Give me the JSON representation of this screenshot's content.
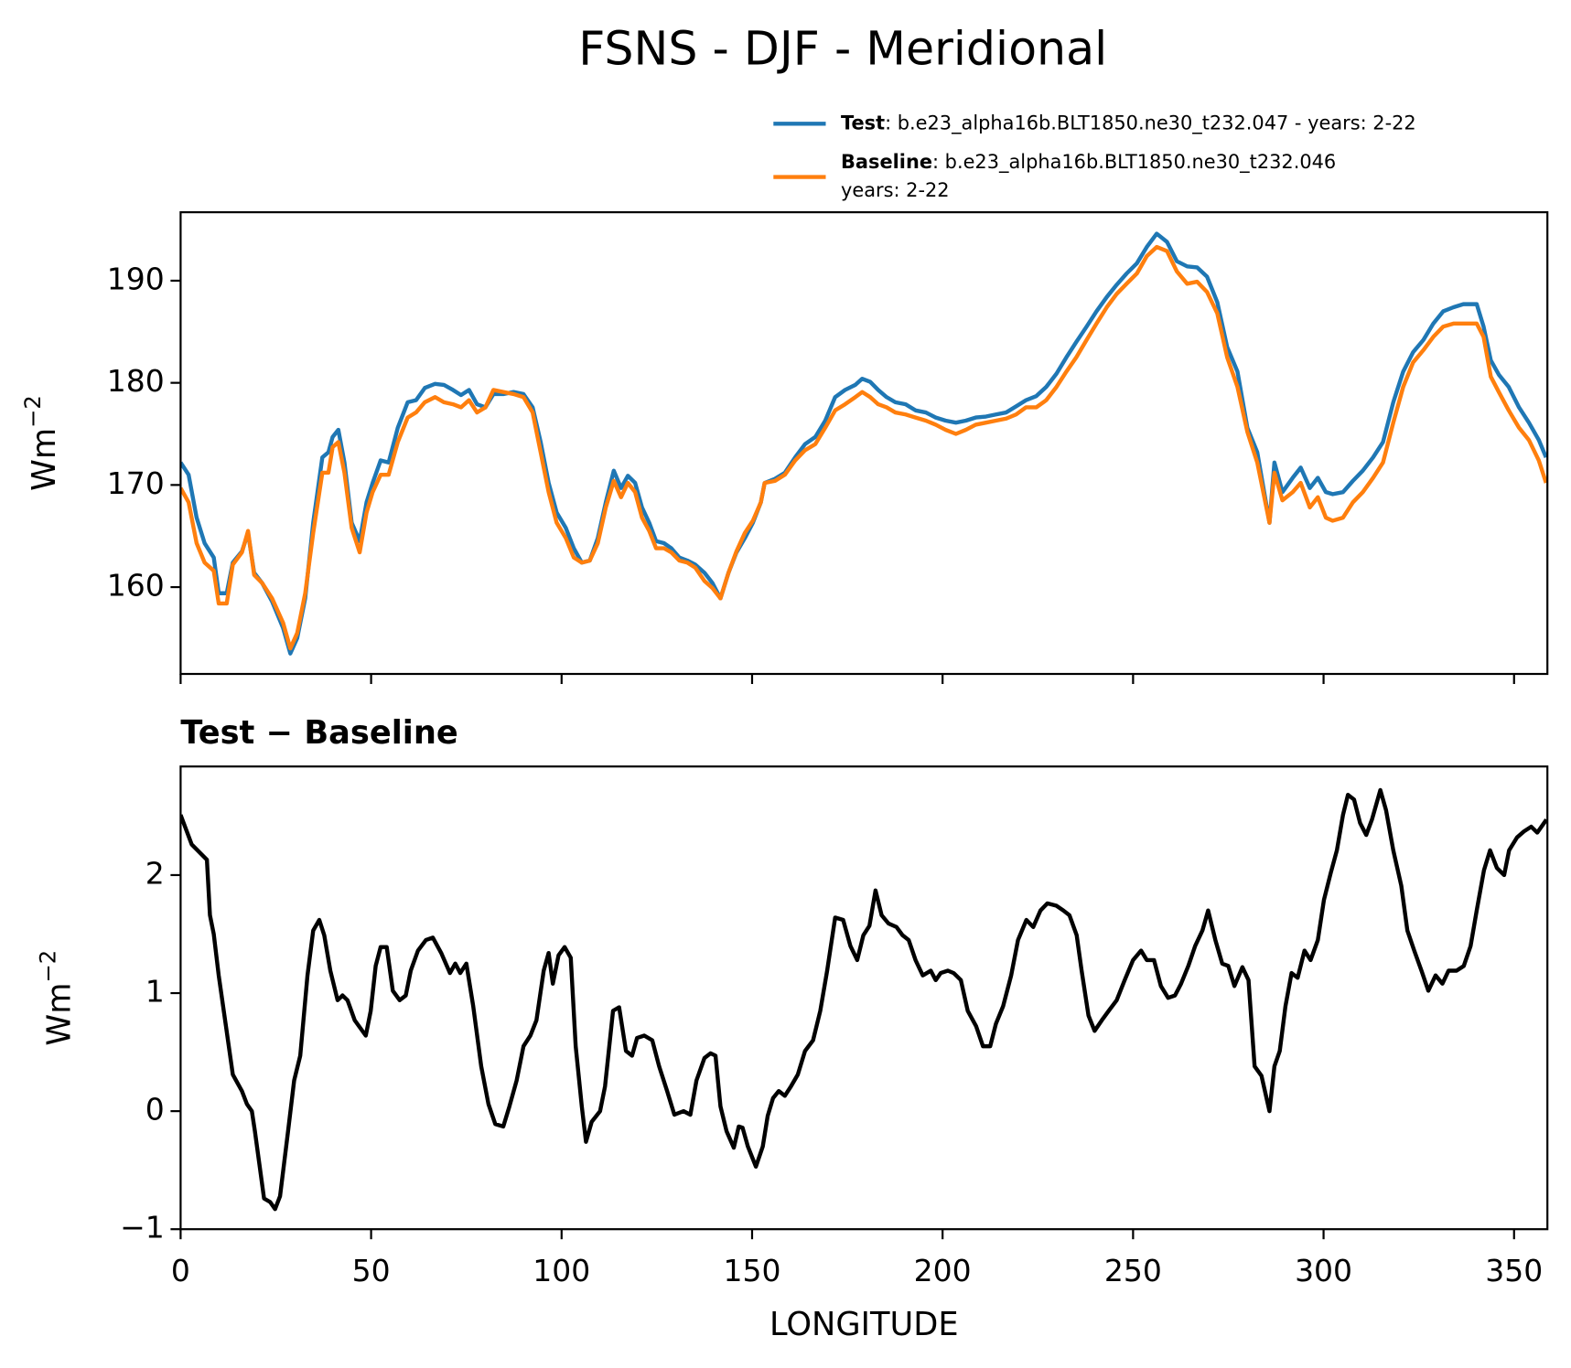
{
  "title": "FSNS - DJF - Meridional",
  "chart_data": [
    {
      "type": "line",
      "ylabel": "Wm",
      "ylabel_exponent": "−2",
      "xlim": [
        0,
        358.75
      ],
      "ylim": [
        151.5,
        196.7
      ],
      "xticks": [
        0,
        50,
        100,
        150,
        200,
        250,
        300,
        350
      ],
      "yticks": [
        160,
        170,
        180,
        190
      ],
      "x": [
        0,
        2.1,
        4.2,
        6.3,
        8.7,
        10.0,
        12.1,
        13.7,
        16.1,
        17.7,
        19.3,
        21.4,
        24.0,
        26.9,
        28.8,
        30.6,
        32.7,
        34.8,
        37.2,
        38.8,
        39.9,
        41.4,
        43.0,
        44.9,
        47.0,
        48.8,
        50.4,
        52.5,
        54.6,
        57.0,
        59.6,
        61.8,
        64.1,
        66.8,
        69.1,
        71.5,
        73.6,
        75.7,
        77.8,
        80.0,
        82.1,
        84.7,
        87.4,
        90.0,
        92.4,
        94.5,
        96.6,
        98.7,
        101.1,
        103.2,
        105.3,
        107.4,
        109.5,
        111.6,
        113.7,
        115.6,
        117.4,
        119.3,
        121.1,
        123.0,
        124.8,
        126.9,
        128.8,
        130.9,
        133.0,
        135.1,
        137.5,
        139.6,
        141.7,
        143.8,
        145.9,
        148.1,
        150.2,
        152.3,
        153.3,
        156.0,
        158.6,
        161.3,
        163.9,
        166.6,
        169.2,
        171.8,
        174.4,
        177.1,
        178.9,
        181.0,
        183.1,
        185.3,
        187.6,
        190.3,
        192.9,
        195.6,
        198.2,
        200.8,
        203.5,
        206.1,
        208.7,
        211.4,
        214.0,
        216.7,
        219.3,
        221.9,
        224.6,
        227.2,
        229.9,
        232.5,
        235.1,
        237.8,
        240.4,
        243.1,
        245.7,
        248.3,
        251.0,
        253.6,
        256.2,
        258.9,
        261.5,
        264.2,
        266.8,
        269.4,
        272.1,
        274.7,
        277.4,
        280.0,
        282.6,
        285.8,
        287.1,
        289.2,
        291.9,
        294.0,
        296.4,
        298.5,
        300.6,
        302.4,
        305.1,
        307.7,
        310.3,
        313.0,
        315.6,
        318.3,
        320.9,
        323.5,
        326.2,
        328.8,
        331.4,
        334.1,
        336.7,
        340.2,
        342.0,
        343.9,
        346.0,
        348.6,
        351.3,
        353.9,
        356.5,
        358.4
      ],
      "series": [
        {
          "name": "Test",
          "label_lines": [
            ": b.e23_alpha16b.BLT1850.ne30_t232.047 - years: 2-22"
          ],
          "color": "#1f77b4",
          "values": [
            172.2,
            171.0,
            166.8,
            164.3,
            162.9,
            159.4,
            159.4,
            162.4,
            163.5,
            165.3,
            161.4,
            160.4,
            158.6,
            156.0,
            153.5,
            155.0,
            158.9,
            166.3,
            172.7,
            173.2,
            174.7,
            175.4,
            172.2,
            166.3,
            164.5,
            168.3,
            170.2,
            172.4,
            172.2,
            175.6,
            178.1,
            178.3,
            179.5,
            179.9,
            179.8,
            179.3,
            178.8,
            179.3,
            177.9,
            177.6,
            178.9,
            178.9,
            179.1,
            178.9,
            177.6,
            174.2,
            170.2,
            167.3,
            165.8,
            163.8,
            162.4,
            162.6,
            164.8,
            168.3,
            171.4,
            169.7,
            170.9,
            170.2,
            167.8,
            166.3,
            164.5,
            164.3,
            163.8,
            162.9,
            162.6,
            162.2,
            161.4,
            160.4,
            158.9,
            161.4,
            163.4,
            164.8,
            166.3,
            168.3,
            170.2,
            170.6,
            171.2,
            172.7,
            174.0,
            174.7,
            176.3,
            178.6,
            179.3,
            179.8,
            180.4,
            180.1,
            179.3,
            178.6,
            178.1,
            177.9,
            177.3,
            177.1,
            176.6,
            176.3,
            176.1,
            176.3,
            176.6,
            176.7,
            176.9,
            177.1,
            177.7,
            178.3,
            178.7,
            179.6,
            180.9,
            182.5,
            184.0,
            185.5,
            187.0,
            188.4,
            189.6,
            190.7,
            191.7,
            193.3,
            194.6,
            193.8,
            191.9,
            191.4,
            191.3,
            190.4,
            187.9,
            183.5,
            181.1,
            175.6,
            173.2,
            166.3,
            172.2,
            169.3,
            170.7,
            171.7,
            169.7,
            170.7,
            169.3,
            169.1,
            169.3,
            170.4,
            171.4,
            172.7,
            174.2,
            178.1,
            181.1,
            183.0,
            184.2,
            185.8,
            187.0,
            187.4,
            187.7,
            187.7,
            185.5,
            182.2,
            180.8,
            179.6,
            177.6,
            176.1,
            174.4,
            172.7
          ]
        },
        {
          "name": "Baseline",
          "label_lines": [
            ": b.e23_alpha16b.BLT1850.ne30_t232.046",
            "years: 2-22"
          ],
          "color": "#ff7f0e",
          "values": [
            169.7,
            168.3,
            164.3,
            162.4,
            161.6,
            158.4,
            158.4,
            162.2,
            163.4,
            165.5,
            161.2,
            160.4,
            158.9,
            156.5,
            154.0,
            155.5,
            159.4,
            165.3,
            171.2,
            171.2,
            173.7,
            174.2,
            171.2,
            165.8,
            163.4,
            167.3,
            169.3,
            171.0,
            171.0,
            174.2,
            176.6,
            177.1,
            178.1,
            178.6,
            178.1,
            177.9,
            177.6,
            178.3,
            177.1,
            177.6,
            179.3,
            179.1,
            178.9,
            178.6,
            177.1,
            173.2,
            169.3,
            166.3,
            164.8,
            162.9,
            162.4,
            162.6,
            164.3,
            167.8,
            170.4,
            168.8,
            170.2,
            169.3,
            166.8,
            165.5,
            163.8,
            163.8,
            163.4,
            162.6,
            162.4,
            161.9,
            160.6,
            159.9,
            158.9,
            161.4,
            163.5,
            165.3,
            166.5,
            168.3,
            170.2,
            170.4,
            171.0,
            172.4,
            173.4,
            174.0,
            175.6,
            177.3,
            177.9,
            178.6,
            179.1,
            178.6,
            177.9,
            177.6,
            177.1,
            176.9,
            176.6,
            176.3,
            175.9,
            175.4,
            175.0,
            175.4,
            175.9,
            176.1,
            176.3,
            176.5,
            176.9,
            177.6,
            177.6,
            178.3,
            179.6,
            181.1,
            182.5,
            184.2,
            185.8,
            187.4,
            188.7,
            189.7,
            190.7,
            192.4,
            193.3,
            192.9,
            190.9,
            189.7,
            189.9,
            188.9,
            186.8,
            182.5,
            179.6,
            175.2,
            172.2,
            166.3,
            171.2,
            168.5,
            169.3,
            170.2,
            167.8,
            168.8,
            166.8,
            166.5,
            166.8,
            168.3,
            169.3,
            170.7,
            172.2,
            176.1,
            179.6,
            182.0,
            183.2,
            184.5,
            185.5,
            185.8,
            185.8,
            185.8,
            184.5,
            180.6,
            179.1,
            177.3,
            175.6,
            174.4,
            172.4,
            170.2
          ]
        }
      ]
    },
    {
      "type": "line",
      "title": "Test − Baseline",
      "xlabel": "LONGITUDE",
      "ylabel": "Wm",
      "ylabel_exponent": "−2",
      "xlim": [
        0,
        358.75
      ],
      "ylim": [
        -1,
        2.92
      ],
      "xticks": [
        0,
        50,
        100,
        150,
        200,
        250,
        300,
        350
      ],
      "yticks": [
        {
          "value": -1,
          "label": "−1"
        },
        0,
        1,
        2
      ],
      "x": [
        0,
        2.9,
        6.9,
        7.7,
        8.7,
        10.0,
        11.9,
        13.7,
        16.1,
        17.4,
        18.7,
        19.5,
        21.9,
        23.5,
        24.8,
        26.1,
        28.2,
        29.8,
        31.4,
        33.3,
        34.8,
        36.4,
        37.7,
        39.3,
        41.2,
        42.5,
        43.8,
        45.7,
        48.6,
        49.9,
        51.2,
        52.5,
        54.1,
        55.7,
        57.5,
        59.1,
        60.4,
        62.3,
        64.4,
        66.2,
        68.4,
        70.7,
        72.1,
        73.4,
        75.0,
        76.8,
        78.9,
        80.8,
        82.6,
        84.7,
        86.3,
        88.2,
        90.0,
        91.8,
        93.4,
        95.3,
        96.6,
        97.7,
        99.2,
        100.8,
        102.4,
        103.7,
        105.3,
        106.4,
        107.9,
        110.1,
        111.4,
        113.5,
        115.1,
        116.9,
        118.5,
        119.8,
        121.7,
        123.8,
        125.6,
        127.7,
        129.6,
        132.0,
        133.8,
        135.4,
        137.5,
        139.1,
        140.4,
        141.7,
        143.3,
        145.2,
        146.5,
        147.5,
        148.9,
        151.0,
        152.8,
        154.1,
        155.5,
        157.0,
        158.6,
        160.2,
        162.0,
        163.9,
        166.0,
        167.9,
        169.7,
        171.8,
        173.9,
        175.8,
        177.6,
        179.2,
        180.8,
        182.4,
        184.0,
        185.8,
        187.9,
        189.5,
        191.1,
        192.9,
        194.8,
        196.9,
        198.2,
        199.5,
        201.4,
        202.9,
        204.8,
        206.6,
        208.8,
        210.6,
        212.5,
        214.0,
        215.9,
        218.0,
        219.8,
        222.0,
        223.8,
        225.7,
        227.5,
        229.9,
        231.7,
        233.3,
        235.2,
        236.5,
        238.3,
        239.9,
        241.8,
        243.6,
        245.7,
        247.8,
        250.0,
        252.1,
        253.6,
        255.5,
        257.3,
        259.2,
        261.0,
        262.6,
        264.5,
        266.3,
        268.2,
        269.7,
        271.6,
        273.4,
        275.0,
        276.6,
        278.7,
        280.3,
        281.9,
        283.7,
        285.8,
        287.1,
        288.5,
        290.0,
        291.6,
        293.2,
        295.0,
        296.6,
        298.5,
        300.1,
        301.9,
        303.5,
        305.1,
        306.4,
        308.0,
        309.6,
        311.2,
        312.7,
        314.9,
        316.4,
        318.3,
        320.4,
        322.0,
        323.8,
        325.7,
        327.5,
        329.4,
        331.2,
        332.8,
        334.9,
        336.8,
        338.6,
        340.2,
        342.1,
        343.7,
        345.5,
        347.4,
        348.7,
        350.8,
        352.6,
        354.5,
        356.1,
        358.5
      ],
      "series": [
        {
          "color": "#000000",
          "values": [
            2.51,
            2.26,
            2.13,
            1.66,
            1.5,
            1.15,
            0.72,
            0.31,
            0.17,
            0.06,
            0,
            -0.17,
            -0.74,
            -0.77,
            -0.83,
            -0.72,
            -0.17,
            0.26,
            0.47,
            1.15,
            1.53,
            1.62,
            1.49,
            1.19,
            0.94,
            0.98,
            0.94,
            0.77,
            0.64,
            0.85,
            1.23,
            1.39,
            1.39,
            1.02,
            0.94,
            0.98,
            1.19,
            1.36,
            1.45,
            1.47,
            1.34,
            1.17,
            1.25,
            1.17,
            1.25,
            0.89,
            0.38,
            0.06,
            -0.11,
            -0.13,
            0.04,
            0.26,
            0.55,
            0.64,
            0.77,
            1.19,
            1.34,
            1.08,
            1.32,
            1.39,
            1.3,
            0.55,
            0.04,
            -0.26,
            -0.09,
            0,
            0.21,
            0.85,
            0.88,
            0.51,
            0.47,
            0.62,
            0.64,
            0.6,
            0.38,
            0.17,
            -0.03,
            0,
            -0.03,
            0.26,
            0.45,
            0.49,
            0.47,
            0.04,
            -0.17,
            -0.31,
            -0.13,
            -0.14,
            -0.3,
            -0.47,
            -0.3,
            -0.04,
            0.11,
            0.17,
            0.13,
            0.21,
            0.31,
            0.51,
            0.6,
            0.85,
            1.19,
            1.64,
            1.62,
            1.4,
            1.28,
            1.49,
            1.57,
            1.87,
            1.66,
            1.59,
            1.56,
            1.49,
            1.45,
            1.28,
            1.15,
            1.19,
            1.11,
            1.17,
            1.19,
            1.17,
            1.11,
            0.85,
            0.72,
            0.55,
            0.55,
            0.74,
            0.89,
            1.15,
            1.45,
            1.62,
            1.56,
            1.7,
            1.76,
            1.74,
            1.7,
            1.66,
            1.49,
            1.19,
            0.81,
            0.68,
            0.77,
            0.85,
            0.94,
            1.11,
            1.28,
            1.36,
            1.28,
            1.28,
            1.06,
            0.96,
            0.98,
            1.08,
            1.23,
            1.4,
            1.53,
            1.7,
            1.45,
            1.25,
            1.23,
            1.06,
            1.22,
            1.11,
            0.38,
            0.3,
            0,
            0.38,
            0.51,
            0.89,
            1.17,
            1.13,
            1.36,
            1.28,
            1.45,
            1.79,
            2.02,
            2.21,
            2.51,
            2.68,
            2.64,
            2.44,
            2.34,
            2.47,
            2.72,
            2.55,
            2.21,
            1.91,
            1.53,
            1.36,
            1.19,
            1.02,
            1.15,
            1.08,
            1.19,
            1.19,
            1.23,
            1.4,
            1.7,
            2.04,
            2.21,
            2.06,
            2.0,
            2.21,
            2.32,
            2.37,
            2.41,
            2.36,
            2.47
          ]
        }
      ]
    }
  ]
}
